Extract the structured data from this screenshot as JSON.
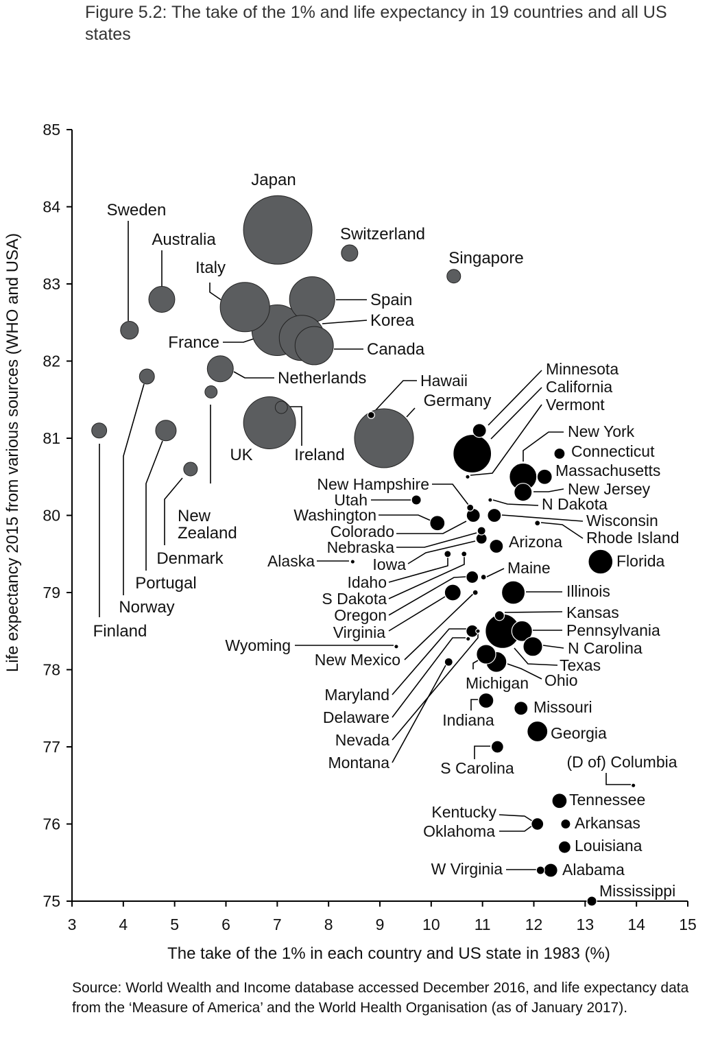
{
  "chart_data": {
    "type": "scatter",
    "subtype": "bubble",
    "title": "Figure 5.2: The take of the 1%  and life expectancy in 19 countries and all US states",
    "xlabel": "The take of the 1% in each country and US state in 1983 (%)",
    "ylabel": "Life expectancy 2015 from various sources (WHO and USA)",
    "xlim": [
      3,
      15
    ],
    "ylim": [
      75,
      85
    ],
    "xticks": [
      "3",
      "4",
      "5",
      "6",
      "7",
      "8",
      "9",
      "10",
      "11",
      "12",
      "13",
      "14",
      "15"
    ],
    "yticks": [
      "75",
      "76",
      "77",
      "78",
      "79",
      "80",
      "81",
      "82",
      "83",
      "84",
      "85"
    ],
    "grid": false,
    "size_note": "relative bubble size",
    "colors": {
      "countries": "#5b5d5f",
      "states": "#000000"
    },
    "series": [
      {
        "name": "Countries",
        "points": [
          {
            "label": "Japan",
            "x": 7.01,
            "y": 83.7,
            "size": 25
          },
          {
            "label": "Switzerland",
            "x": 8.41,
            "y": 83.4,
            "size": 1.44
          },
          {
            "label": "Singapore",
            "x": 10.44,
            "y": 83.1,
            "size": 1.0
          },
          {
            "label": "Sweden",
            "x": 4.12,
            "y": 82.4,
            "size": 1.7
          },
          {
            "label": "Australia",
            "x": 4.75,
            "y": 82.8,
            "size": 3.6
          },
          {
            "label": "Italy",
            "x": 6.37,
            "y": 82.7,
            "size": 13
          },
          {
            "label": "Spain",
            "x": 7.68,
            "y": 82.8,
            "size": 10.9
          },
          {
            "label": "France",
            "x": 7.0,
            "y": 82.4,
            "size": 13.7
          },
          {
            "label": "Korea",
            "x": 7.48,
            "y": 82.3,
            "size": 10.9
          },
          {
            "label": "Canada",
            "x": 7.72,
            "y": 82.2,
            "size": 7.8
          },
          {
            "label": "Netherlands",
            "x": 5.89,
            "y": 81.9,
            "size": 3.6
          },
          {
            "label": "Norway",
            "x": 4.46,
            "y": 81.8,
            "size": 1.2
          },
          {
            "label": "New Zealand",
            "x": 5.71,
            "y": 81.6,
            "size": 0.8
          },
          {
            "label": "Finland",
            "x": 3.53,
            "y": 81.1,
            "size": 1.2
          },
          {
            "label": "Portugal",
            "x": 4.83,
            "y": 81.1,
            "size": 2.25
          },
          {
            "label": "Denmark",
            "x": 5.31,
            "y": 80.6,
            "size": 1.0
          },
          {
            "label": "UK",
            "x": 6.85,
            "y": 81.2,
            "size": 14.4
          },
          {
            "label": "Ireland",
            "x": 7.08,
            "y": 81.4,
            "size": 0.8
          },
          {
            "label": "Germany",
            "x": 9.08,
            "y": 81.0,
            "size": 18.5
          }
        ]
      },
      {
        "name": "US states",
        "points": [
          {
            "label": "Hawaii",
            "x": 8.83,
            "y": 81.3,
            "size": 0.25
          },
          {
            "label": "Minnesota",
            "x": 10.94,
            "y": 81.1,
            "size": 1.0
          },
          {
            "label": "California",
            "x": 10.8,
            "y": 80.8,
            "size": 7.8
          },
          {
            "label": "Vermont",
            "x": 10.71,
            "y": 80.5,
            "size": 0.1
          },
          {
            "label": "New York",
            "x": 11.79,
            "y": 80.5,
            "size": 4.0
          },
          {
            "label": "Connecticut",
            "x": 12.5,
            "y": 80.8,
            "size": 0.64
          },
          {
            "label": "Massachusetts",
            "x": 12.21,
            "y": 80.5,
            "size": 1.2
          },
          {
            "label": "New Jersey",
            "x": 11.79,
            "y": 80.3,
            "size": 1.7
          },
          {
            "label": "N Dakota",
            "x": 11.15,
            "y": 80.2,
            "size": 0.1
          },
          {
            "label": "New Hampshire",
            "x": 10.76,
            "y": 80.1,
            "size": 0.25
          },
          {
            "label": "Utah",
            "x": 9.71,
            "y": 80.2,
            "size": 0.5
          },
          {
            "label": "Washington",
            "x": 10.12,
            "y": 79.9,
            "size": 1.2
          },
          {
            "label": "Colorado",
            "x": 10.82,
            "y": 80.0,
            "size": 1.0
          },
          {
            "label": "Wisconsin",
            "x": 11.23,
            "y": 80.0,
            "size": 1.0
          },
          {
            "label": "Rhode Island",
            "x": 12.07,
            "y": 79.9,
            "size": 0.16
          },
          {
            "label": "Nebraska",
            "x": 10.98,
            "y": 79.8,
            "size": 0.36
          },
          {
            "label": "Iowa",
            "x": 10.98,
            "y": 79.7,
            "size": 0.64
          },
          {
            "label": "Arizona",
            "x": 11.27,
            "y": 79.6,
            "size": 1.0
          },
          {
            "label": "Florida",
            "x": 13.3,
            "y": 79.4,
            "size": 3.2
          },
          {
            "label": "Alaska",
            "x": 8.47,
            "y": 79.4,
            "size": 0.1
          },
          {
            "label": "Idaho",
            "x": 10.32,
            "y": 79.5,
            "size": 0.25
          },
          {
            "label": "S Dakota",
            "x": 10.64,
            "y": 79.5,
            "size": 0.16
          },
          {
            "label": "Oregon",
            "x": 10.8,
            "y": 79.2,
            "size": 0.8
          },
          {
            "label": "Maine",
            "x": 11.02,
            "y": 79.2,
            "size": 0.16
          },
          {
            "label": "Illinois",
            "x": 11.6,
            "y": 79.0,
            "size": 2.9
          },
          {
            "label": "Virginia",
            "x": 10.42,
            "y": 79.0,
            "size": 1.44
          },
          {
            "label": "New Mexico",
            "x": 10.86,
            "y": 79.0,
            "size": 0.16
          },
          {
            "label": "Kansas",
            "x": 11.33,
            "y": 78.7,
            "size": 0.5
          },
          {
            "label": "Pennsylvania",
            "x": 11.77,
            "y": 78.5,
            "size": 2.25
          },
          {
            "label": "Texas",
            "x": 11.39,
            "y": 78.5,
            "size": 6.3
          },
          {
            "label": "Maryland",
            "x": 10.8,
            "y": 78.5,
            "size": 0.8
          },
          {
            "label": "Nevada",
            "x": 10.91,
            "y": 78.5,
            "size": 0.1
          },
          {
            "label": "Delaware",
            "x": 10.72,
            "y": 78.4,
            "size": 0.1
          },
          {
            "label": "N Carolina",
            "x": 11.98,
            "y": 78.3,
            "size": 2.0
          },
          {
            "label": "Wyoming",
            "x": 9.32,
            "y": 78.3,
            "size": 0.1
          },
          {
            "label": "Michigan",
            "x": 11.07,
            "y": 78.2,
            "size": 2.0
          },
          {
            "label": "Ohio",
            "x": 11.27,
            "y": 78.1,
            "size": 2.25
          },
          {
            "label": "Montana",
            "x": 10.34,
            "y": 78.1,
            "size": 0.36
          },
          {
            "label": "Indiana",
            "x": 11.07,
            "y": 77.6,
            "size": 1.2
          },
          {
            "label": "Missouri",
            "x": 11.75,
            "y": 77.5,
            "size": 1.0
          },
          {
            "label": "Georgia",
            "x": 12.07,
            "y": 77.2,
            "size": 2.25
          },
          {
            "label": "S Carolina",
            "x": 11.29,
            "y": 77.0,
            "size": 0.8
          },
          {
            "label": "(D of) Columbia",
            "x": 13.94,
            "y": 76.5,
            "size": 0.1
          },
          {
            "label": "Tennessee",
            "x": 12.5,
            "y": 76.3,
            "size": 1.2
          },
          {
            "label": "Kentucky",
            "x": 12.07,
            "y": 76.0,
            "size": 0.8
          },
          {
            "label": "Oklahoma",
            "x": 12.07,
            "y": 76.0,
            "size": 0.8
          },
          {
            "label": "Arkansas",
            "x": 12.62,
            "y": 76.0,
            "size": 0.5
          },
          {
            "label": "Louisiana",
            "x": 12.6,
            "y": 75.7,
            "size": 0.8
          },
          {
            "label": "W Virginia",
            "x": 12.13,
            "y": 75.4,
            "size": 0.36
          },
          {
            "label": "Alabama",
            "x": 12.33,
            "y": 75.4,
            "size": 1.0
          },
          {
            "label": "Mississippi",
            "x": 13.13,
            "y": 75.0,
            "size": 0.5
          }
        ]
      }
    ]
  },
  "source": "Source: World Wealth and Income database accessed December 2016, and life expectancy data from the ‘Measure of America’ and the World Health Organisation (as of January 2017)."
}
